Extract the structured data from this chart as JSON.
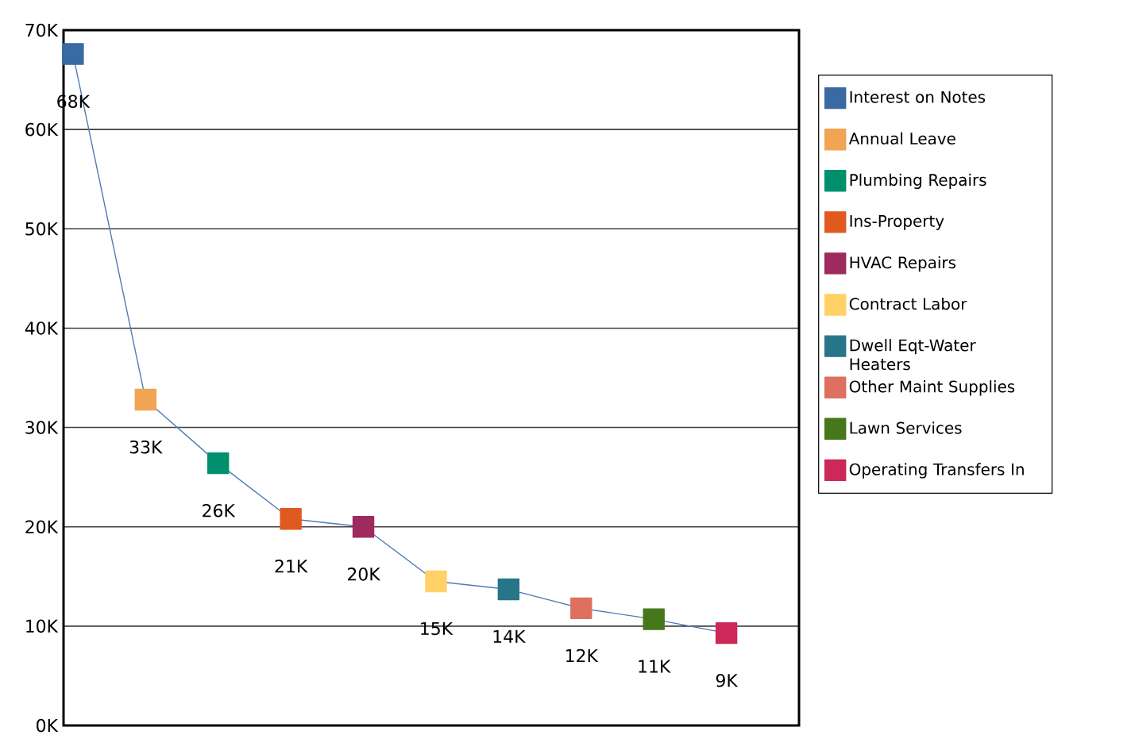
{
  "chart_data": {
    "type": "line",
    "categories": [
      null,
      null,
      null,
      null,
      null,
      null,
      null,
      null,
      null,
      null
    ],
    "series": [
      {
        "color": "#4f7bb4",
        "marker": "none",
        "values": [
          67600,
          32800,
          26400,
          20800,
          20000,
          14500,
          13700,
          11800,
          10700,
          9300
        ],
        "value_labels": [
          "68K",
          "33K",
          "26K",
          "21K",
          "20K",
          "15K",
          "14K",
          "12K",
          "11K",
          "9K"
        ]
      },
      {
        "type": "scatter",
        "name": "Interest on Notes",
        "color": "#3a6aa3",
        "values": [
          67600,
          null,
          null,
          null,
          null,
          null,
          null,
          null,
          null,
          null
        ]
      },
      {
        "type": "scatter",
        "name": "Annual Leave",
        "color": "#f0a454",
        "values": [
          null,
          32800,
          null,
          null,
          null,
          null,
          null,
          null,
          null,
          null
        ]
      },
      {
        "type": "scatter",
        "name": "Plumbing Repairs",
        "color": "#00906e",
        "values": [
          null,
          null,
          26400,
          null,
          null,
          null,
          null,
          null,
          null,
          null
        ]
      },
      {
        "type": "scatter",
        "name": "Ins-Property",
        "color": "#e05a20",
        "values": [
          null,
          null,
          null,
          20800,
          null,
          null,
          null,
          null,
          null,
          null
        ]
      },
      {
        "type": "scatter",
        "name": "HVAC Repairs",
        "color": "#9e2a5e",
        "values": [
          null,
          null,
          null,
          null,
          20000,
          null,
          null,
          null,
          null,
          null
        ]
      },
      {
        "type": "scatter",
        "name": "Contract Labor",
        "color": "#ffd166",
        "values": [
          null,
          null,
          null,
          null,
          null,
          14500,
          null,
          null,
          null,
          null
        ]
      },
      {
        "type": "scatter",
        "name": "Dwell Eqt-Water Heaters",
        "color": "#277589",
        "values": [
          null,
          null,
          null,
          null,
          null,
          null,
          13700,
          null,
          null,
          null
        ]
      },
      {
        "type": "scatter",
        "name": "Other Maint Supplies",
        "color": "#de7060",
        "values": [
          null,
          null,
          null,
          null,
          null,
          null,
          null,
          11800,
          null,
          null
        ]
      },
      {
        "type": "scatter",
        "name": "Lawn Services",
        "color": "#45781a",
        "values": [
          null,
          null,
          null,
          null,
          null,
          null,
          null,
          null,
          10700,
          null
        ]
      },
      {
        "type": "scatter",
        "name": "Operating Transfers In",
        "color": "#cc2858",
        "values": [
          null,
          null,
          null,
          null,
          null,
          null,
          null,
          null,
          null,
          9300
        ]
      }
    ],
    "marker": "square",
    "grid": "y",
    "legend": "right",
    "tick_labels": "y",
    "ylim": [
      0,
      70000
    ],
    "yticks": [
      {
        "value": 0,
        "label": "0K"
      },
      {
        "value": 10000,
        "label": "10K"
      },
      {
        "value": 20000,
        "label": "20K"
      },
      {
        "value": 30000,
        "label": "30K"
      },
      {
        "value": 40000,
        "label": "40K"
      },
      {
        "value": 50000,
        "label": "50K"
      },
      {
        "value": 60000,
        "label": "60K"
      },
      {
        "value": 70000,
        "label": "70K"
      }
    ]
  }
}
